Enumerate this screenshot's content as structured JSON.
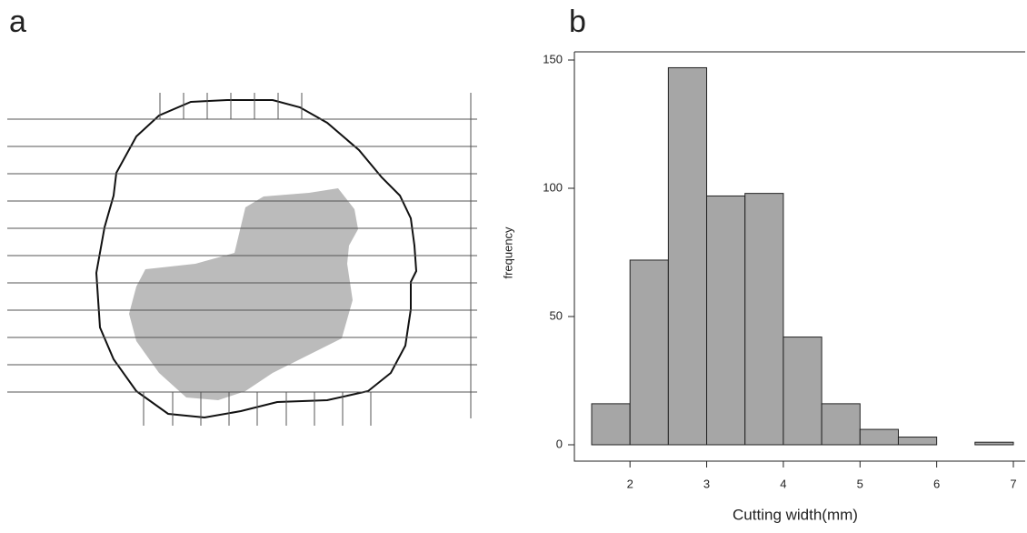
{
  "panels": [
    "a",
    "b"
  ],
  "chart_data": {
    "type": "histogram",
    "x_label": "Cutting width(mm)",
    "y_label": "frequency",
    "bins": [
      1.5,
      2,
      2.5,
      3,
      3.5,
      4,
      4.5,
      5,
      5.5,
      6,
      6.5,
      7
    ],
    "values": [
      16,
      72,
      147,
      97,
      98,
      42,
      16,
      6,
      3,
      0,
      1
    ],
    "color": "#a6a6a6",
    "xlim": [
      1.5,
      7
    ],
    "xticks": [
      2,
      3,
      4,
      5,
      6,
      7
    ],
    "ylim": [
      0,
      150
    ],
    "yticks": [
      0,
      50,
      100,
      150
    ]
  }
}
